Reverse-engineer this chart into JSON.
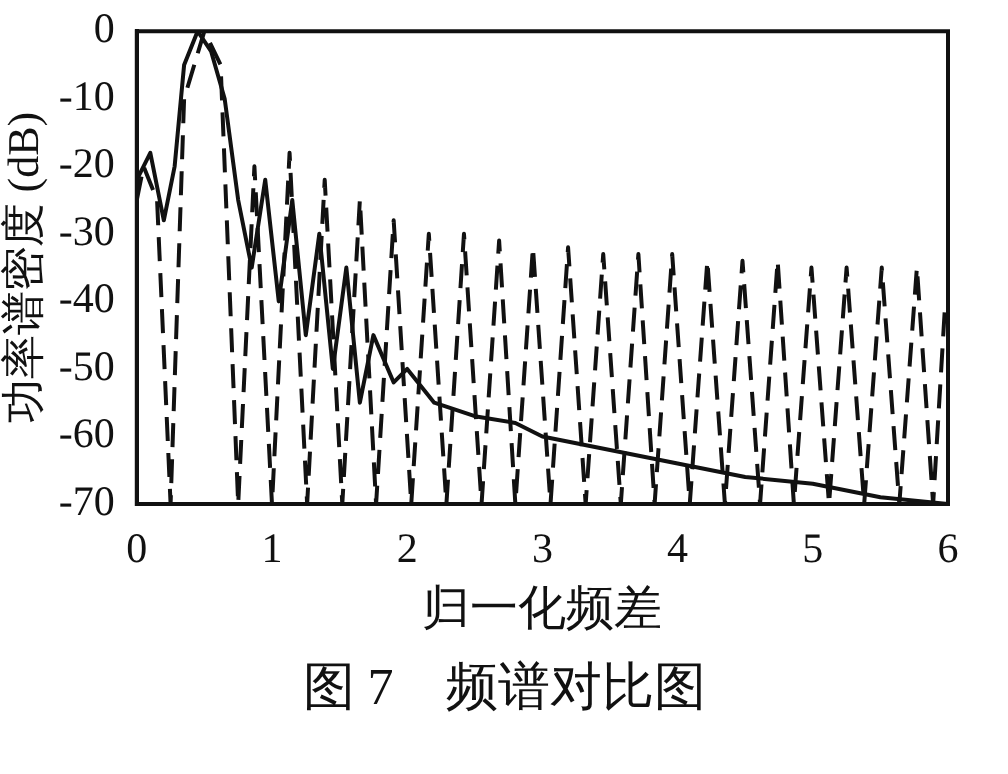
{
  "chart_data": {
    "type": "line",
    "title": "图 7　频谱对比图",
    "xlabel": "归一化频差",
    "ylabel": "功率谱密度 (dB)",
    "xlim": [
      0,
      6
    ],
    "xticks": [
      0,
      1,
      2,
      3,
      4,
      5,
      6
    ],
    "ylim": [
      -70,
      0
    ],
    "yticks": [
      -70,
      -60,
      -50,
      -40,
      -30,
      -20,
      -10,
      0
    ],
    "grid": false,
    "legend": false,
    "marker": "none",
    "series": [
      {
        "color": "#111111",
        "line_style": "dashed",
        "x": [
          0,
          0.05,
          0.15,
          0.25,
          0.35,
          0.5,
          0.62,
          0.75,
          0.87,
          1.0,
          1.13,
          1.26,
          1.39,
          1.52,
          1.65,
          1.77,
          1.9,
          2.03,
          2.16,
          2.29,
          2.42,
          2.55,
          2.68,
          2.8,
          2.93,
          3.06,
          3.19,
          3.32,
          3.45,
          3.58,
          3.71,
          3.83,
          3.96,
          4.09,
          4.22,
          4.35,
          4.48,
          4.61,
          4.74,
          4.86,
          4.99,
          5.12,
          5.25,
          5.38,
          5.51,
          5.64,
          5.77,
          5.89,
          5.98
        ],
        "values": [
          -25,
          -20,
          -25,
          -70,
          -10,
          0,
          -5,
          -70,
          -20,
          -70,
          -18,
          -70,
          -22,
          -70,
          -25,
          -70,
          -28,
          -70,
          -30,
          -70,
          -30,
          -70,
          -31,
          -70,
          -32,
          -70,
          -32,
          -70,
          -33,
          -70,
          -33,
          -70,
          -33,
          -70,
          -34,
          -70,
          -34,
          -70,
          -34,
          -70,
          -35,
          -70,
          -35,
          -70,
          -35,
          -70,
          -35,
          -70,
          -40
        ]
      },
      {
        "color": "#111111",
        "line_style": "solid",
        "x": [
          0,
          0.1,
          0.2,
          0.28,
          0.35,
          0.45,
          0.55,
          0.65,
          0.75,
          0.85,
          0.95,
          1.05,
          1.15,
          1.25,
          1.35,
          1.45,
          1.55,
          1.65,
          1.75,
          1.9,
          2.0,
          2.2,
          2.5,
          2.8,
          3.0,
          3.5,
          4.0,
          4.5,
          5.0,
          5.5,
          6.0
        ],
        "values": [
          -22,
          -18,
          -28,
          -20,
          -5,
          0,
          -3,
          -10,
          -25,
          -35,
          -22,
          -40,
          -25,
          -45,
          -30,
          -50,
          -35,
          -55,
          -45,
          -52,
          -50,
          -55,
          -57,
          -58,
          -60,
          -62,
          -64,
          -66,
          -67,
          -69,
          -70
        ]
      }
    ]
  }
}
